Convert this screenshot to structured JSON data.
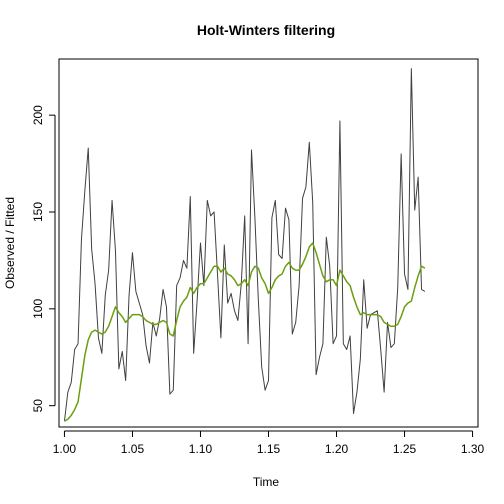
{
  "chart_data": {
    "type": "line",
    "title": "Holt-Winters filtering",
    "xlabel": "Time",
    "ylabel": "Observed / Fitted",
    "xlim": [
      0.996,
      1.304
    ],
    "ylim": [
      39,
      229
    ],
    "x_ticks": [
      1.0,
      1.05,
      1.1,
      1.15,
      1.2,
      1.25,
      1.3
    ],
    "x_tick_labels": [
      "1.00",
      "1.05",
      "1.10",
      "1.15",
      "1.20",
      "1.25",
      "1.30"
    ],
    "y_ticks": [
      50,
      100,
      150,
      200
    ],
    "y_tick_labels": [
      "50",
      "100",
      "150",
      "200"
    ],
    "series": [
      {
        "color": "#404040",
        "x_start": 1.0,
        "x_step": 0.0025,
        "values": [
          42,
          57,
          62,
          79,
          82,
          136,
          161,
          183,
          131,
          113,
          85,
          77,
          107,
          120,
          156,
          130,
          69,
          78,
          63,
          107,
          129,
          109,
          103,
          97,
          81,
          72,
          93,
          86,
          95,
          110,
          101,
          56,
          58,
          112,
          116,
          125,
          121,
          158,
          77,
          104,
          134,
          112,
          156,
          148,
          150,
          118,
          85,
          133,
          103,
          108,
          99,
          94,
          113,
          148,
          82,
          182,
          147,
          105,
          70,
          58,
          63,
          147,
          156,
          128,
          126,
          152,
          146,
          87,
          93,
          112,
          157,
          163,
          186,
          155,
          66,
          75,
          82,
          137,
          122,
          82,
          86,
          197,
          82,
          79,
          86,
          46,
          57,
          74,
          115,
          90,
          97,
          98,
          99,
          79,
          57,
          93,
          80,
          82,
          111,
          180,
          118,
          110,
          224,
          151,
          168,
          110,
          109
        ]
      },
      {
        "color": "#6b9e10",
        "x_start": 1.0,
        "x_step": 0.0025,
        "values": [
          42,
          43,
          45,
          48,
          52,
          64,
          76,
          84,
          88,
          89,
          88,
          87,
          88,
          91,
          96,
          101,
          98,
          96,
          93,
          95,
          97,
          97,
          97,
          96,
          94,
          93,
          92,
          92,
          93,
          94,
          93,
          87,
          86,
          94,
          101,
          104,
          106,
          111,
          108,
          111,
          113,
          113,
          116,
          119,
          122,
          122,
          119,
          121,
          118,
          117,
          115,
          112,
          113,
          115,
          112,
          119,
          122,
          121,
          116,
          113,
          108,
          111,
          115,
          117,
          118,
          122,
          124,
          121,
          120,
          120,
          123,
          127,
          132,
          134,
          129,
          123,
          117,
          114,
          115,
          115,
          112,
          120,
          117,
          114,
          112,
          106,
          101,
          97,
          98,
          97,
          97,
          97,
          97,
          96,
          93,
          92,
          91,
          91,
          92,
          96,
          101,
          103,
          104,
          111,
          117,
          122,
          121
        ]
      }
    ]
  }
}
